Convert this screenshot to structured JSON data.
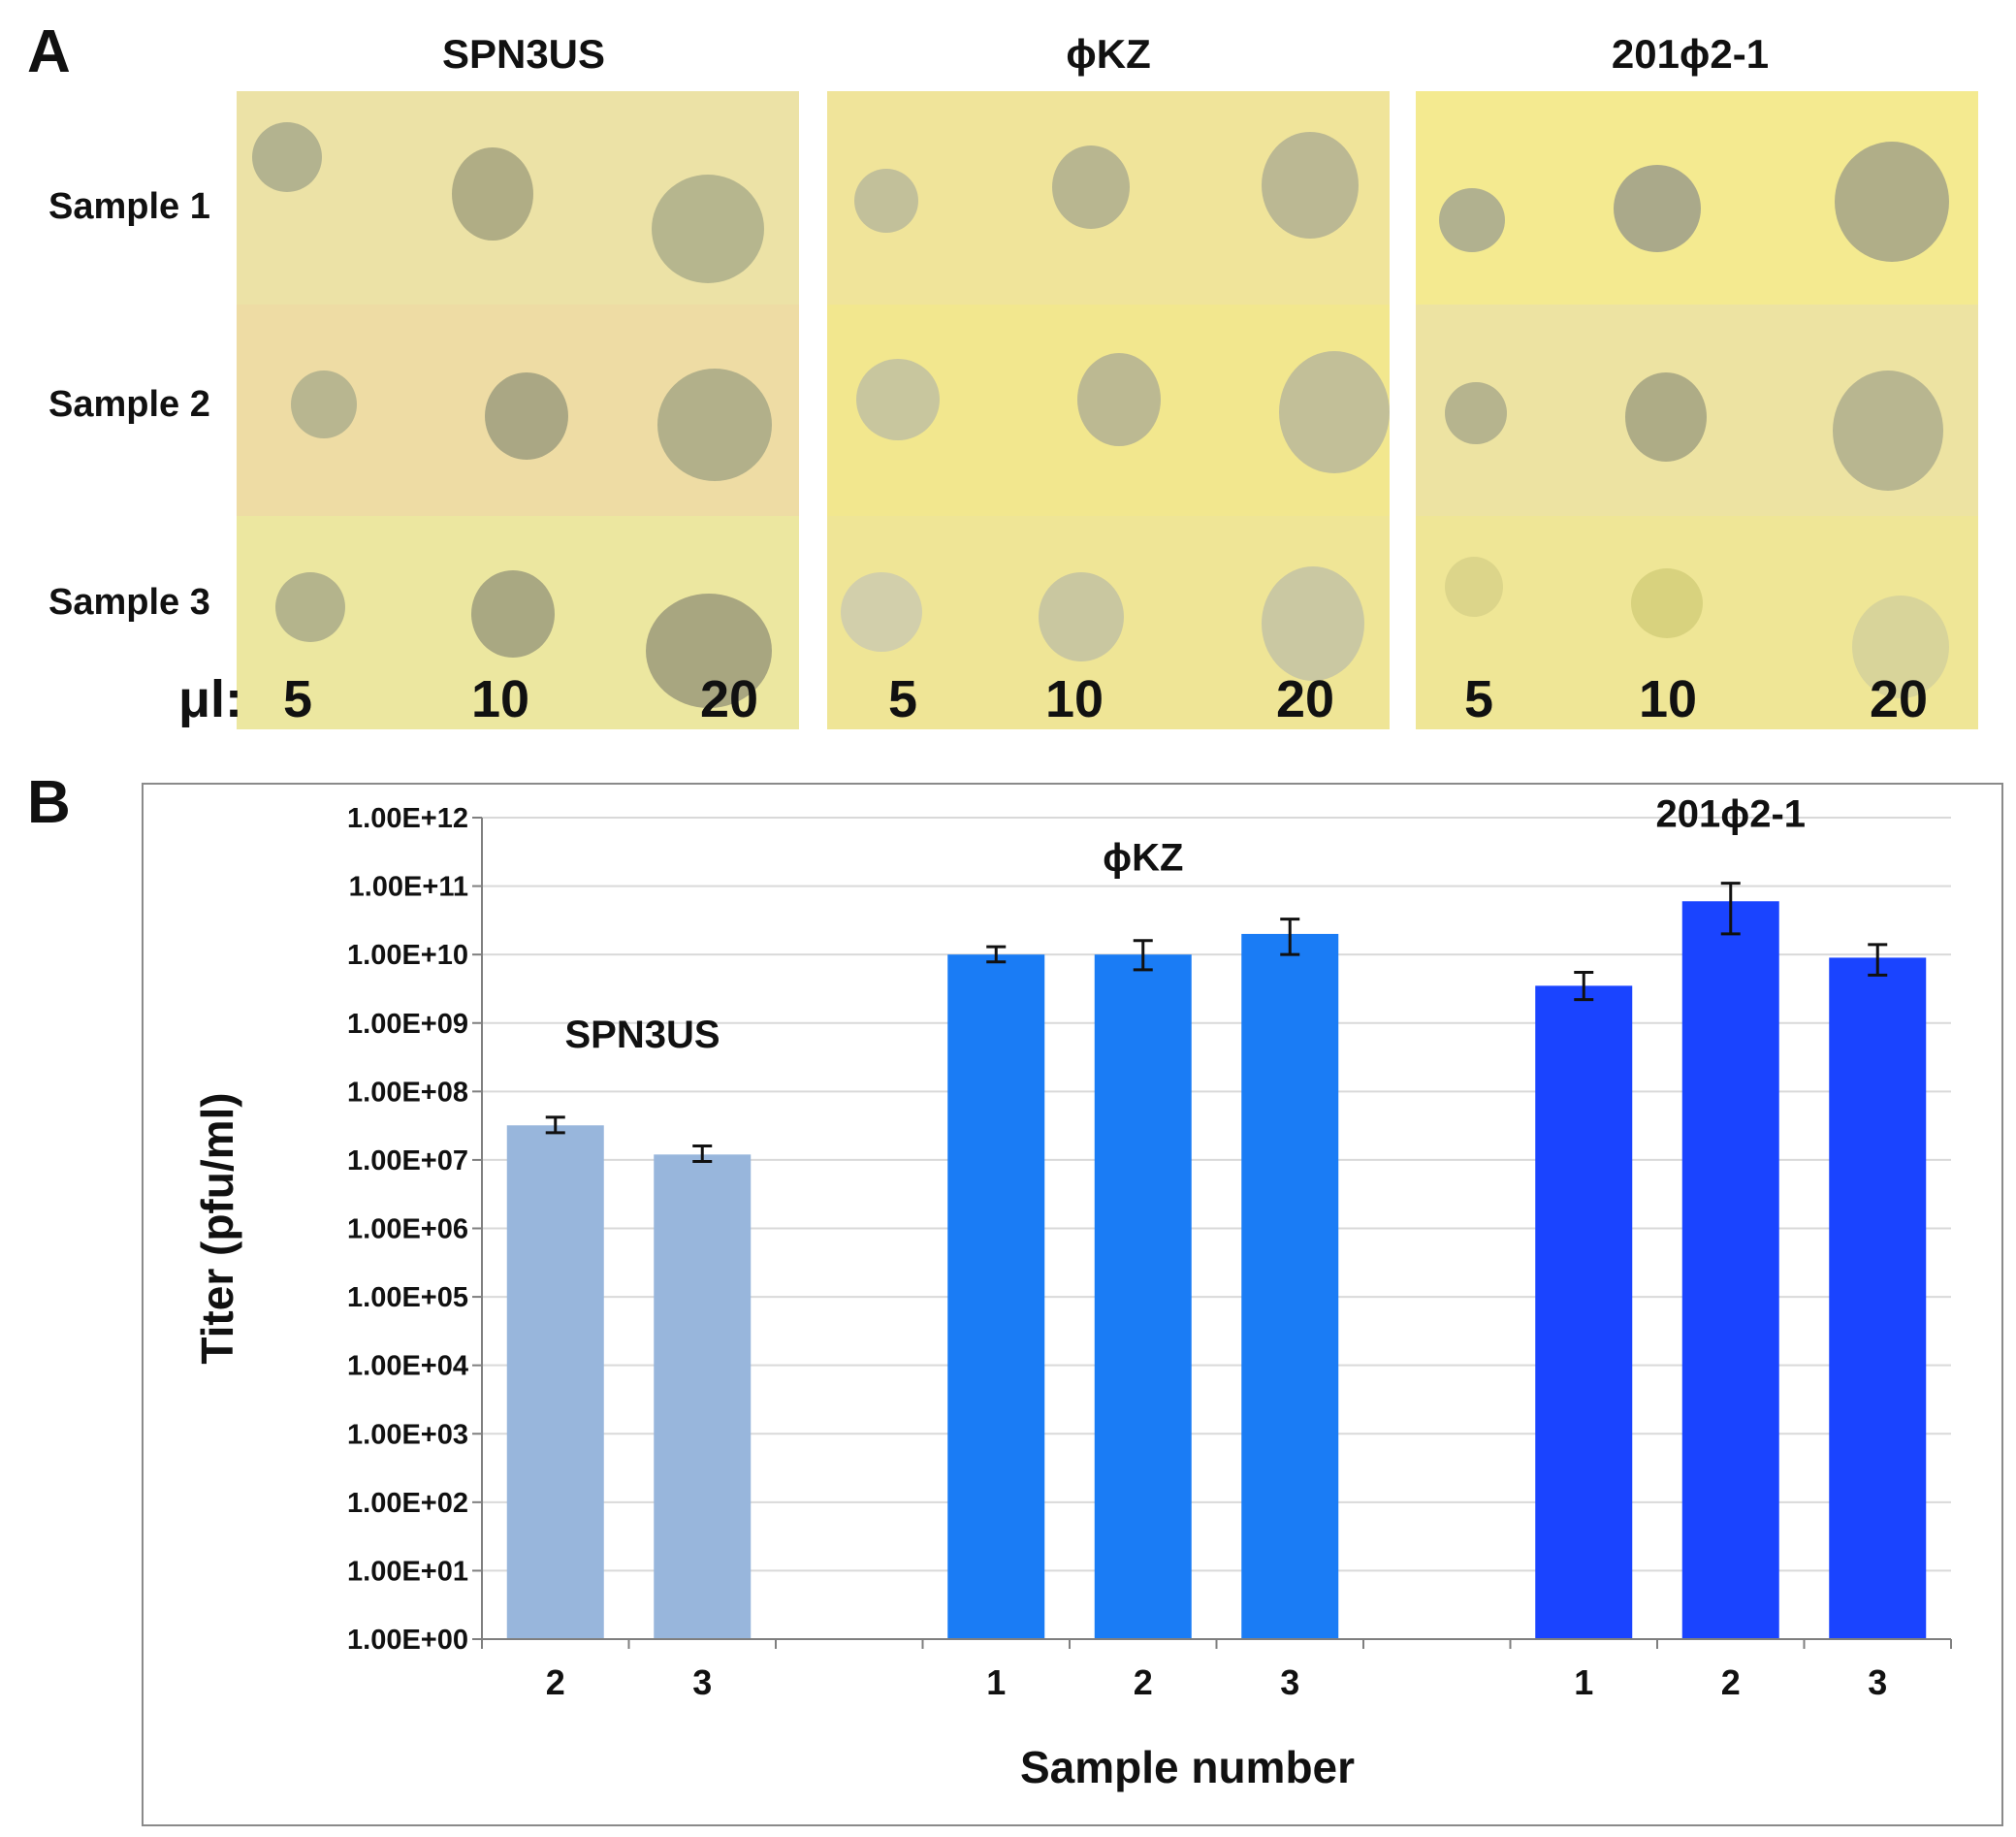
{
  "panel_a": {
    "letter": "A",
    "phages": [
      "SPN3US",
      "ϕKZ",
      "201ϕ2-1"
    ],
    "samples": [
      "Sample 1",
      "Sample 2",
      "Sample 3"
    ],
    "volume_prefix": "μl:",
    "volumes": [
      "5",
      "10",
      "20"
    ]
  },
  "panel_b": {
    "letter": "B"
  },
  "colors": {
    "SPN3US": "#98b6dc",
    "phiKZ": "#1a7cf5",
    "201phi2-1": "#1a44ff",
    "plate_yellow": "#efe49a",
    "plate_orange": "#ecdca0",
    "spot": "#b8b68a"
  },
  "chart_data": {
    "type": "bar",
    "title": "",
    "xlabel": "Sample number",
    "ylabel": "Titer (pfu/ml)",
    "yscale": "log",
    "ylim": [
      1,
      1000000000000
    ],
    "ytick_labels": [
      "1.00E+00",
      "1.00E+01",
      "1.00E+02",
      "1.00E+03",
      "1.00E+04",
      "1.00E+05",
      "1.00E+06",
      "1.00E+07",
      "1.00E+08",
      "1.00E+09",
      "1.00E+10",
      "1.00E+11",
      "1.00E+12"
    ],
    "grid": true,
    "series": [
      {
        "name": "SPN3US",
        "group_label": "SPN3US",
        "color": "#98b6dc",
        "categories": [
          "2",
          "3"
        ],
        "values": [
          32000000,
          12000000
        ],
        "err_low": [
          25000000,
          9500000
        ],
        "err_high": [
          42000000,
          16000000
        ]
      },
      {
        "name": "ϕKZ",
        "group_label": "ϕKZ",
        "color": "#1a7cf5",
        "categories": [
          "1",
          "2",
          "3"
        ],
        "values": [
          10000000000,
          10000000000,
          20000000000
        ],
        "err_low": [
          7800000000,
          6000000000,
          10000000000
        ],
        "err_high": [
          13000000000,
          16000000000,
          33000000000
        ]
      },
      {
        "name": "201ϕ2-1",
        "group_label": "201ϕ2-1",
        "color": "#1a44ff",
        "categories": [
          "1",
          "2",
          "3"
        ],
        "values": [
          3500000000,
          60000000000,
          9000000000
        ],
        "err_low": [
          2200000000,
          20000000000,
          5000000000
        ],
        "err_high": [
          5500000000,
          110000000000,
          14000000000
        ]
      }
    ]
  }
}
